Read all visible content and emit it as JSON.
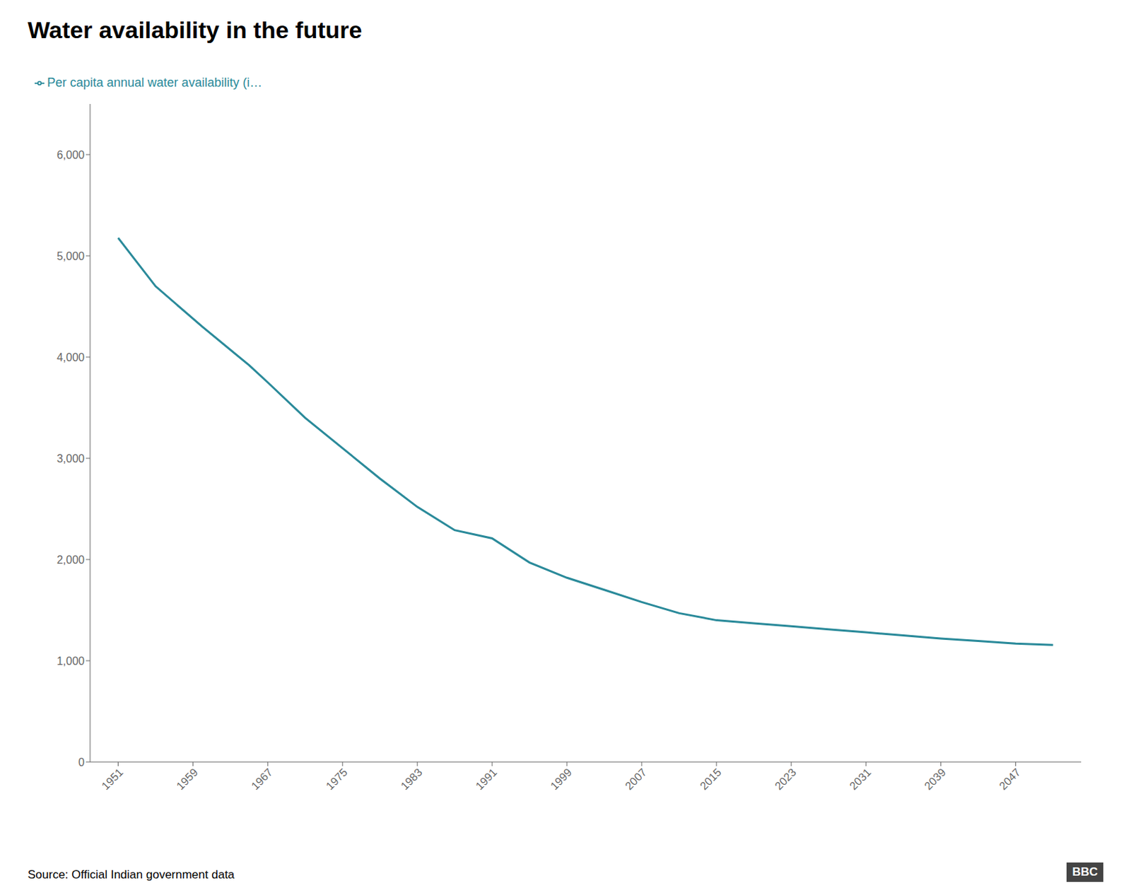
{
  "chart_data": {
    "type": "line",
    "title": "Water availability in the future",
    "x": [
      1951,
      1955,
      1960,
      1965,
      1967,
      1971,
      1975,
      1979,
      1983,
      1987,
      1991,
      1995,
      1999,
      2003,
      2007,
      2011,
      2015,
      2019,
      2023,
      2027,
      2031,
      2035,
      2039,
      2043,
      2047,
      2051
    ],
    "series": [
      {
        "name": "Per capita annual water availability (i…",
        "color": "#2a8a9a",
        "values": [
          5177,
          4700,
          4300,
          3920,
          3750,
          3400,
          3100,
          2800,
          2520,
          2290,
          2209,
          1970,
          1820,
          1700,
          1580,
          1470,
          1400,
          1370,
          1340,
          1310,
          1280,
          1250,
          1220,
          1195,
          1170,
          1155
        ]
      }
    ],
    "xlim": [
      1948,
      2054
    ],
    "xticks": [
      1951,
      1959,
      1967,
      1975,
      1983,
      1991,
      1999,
      2007,
      2015,
      2023,
      2031,
      2039,
      2047
    ],
    "ylim": [
      0,
      6500
    ],
    "yticks": [
      0,
      {
        "value": 1000,
        "label": "1,000"
      },
      {
        "value": 2000,
        "label": "2,000"
      },
      {
        "value": 3000,
        "label": "3,000"
      },
      {
        "value": 4000,
        "label": "4,000"
      },
      {
        "value": 5000,
        "label": "5,000"
      },
      {
        "value": 6000,
        "label": "6,000"
      }
    ],
    "grid": false,
    "legend": "top",
    "annotations": [
      "Source: Official Indian government data",
      "BBC"
    ]
  }
}
